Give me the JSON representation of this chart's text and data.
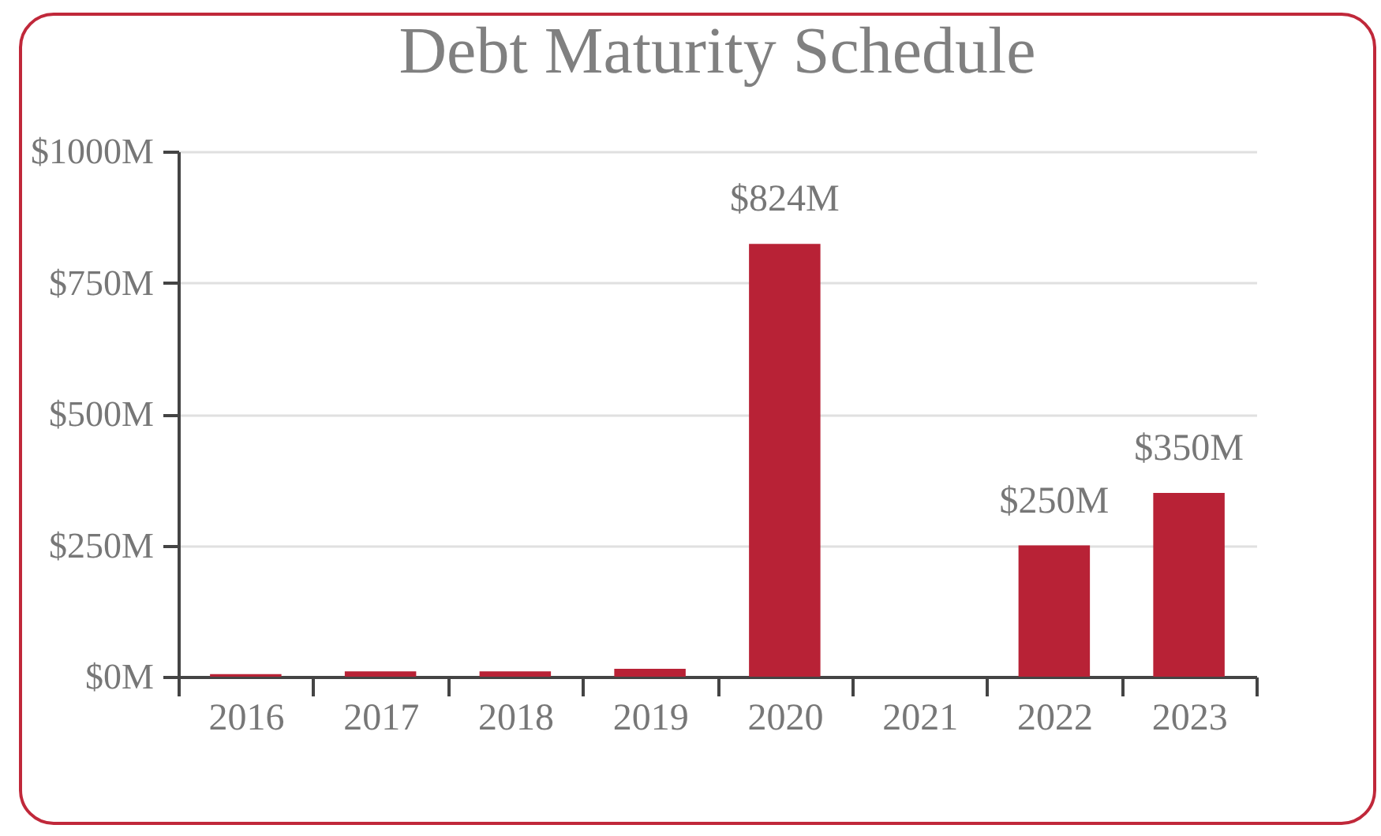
{
  "chart_data": {
    "type": "bar",
    "title": "Debt Maturity Schedule",
    "categories": [
      "2016",
      "2017",
      "2018",
      "2019",
      "2020",
      "2021",
      "2022",
      "2023"
    ],
    "values": [
      5,
      10,
      10,
      15,
      824,
      0,
      250,
      350
    ],
    "value_labels": [
      null,
      null,
      null,
      null,
      "$824M",
      null,
      "$250M",
      "$350M"
    ],
    "color": "#b82236",
    "ylim": [
      0,
      1000
    ],
    "yticks": [
      {
        "value": 0,
        "label": "$0M"
      },
      {
        "value": 250,
        "label": "$250M"
      },
      {
        "value": 500,
        "label": "$500M"
      },
      {
        "value": 750,
        "label": "$750M"
      },
      {
        "value": 1000,
        "label": "$1000M"
      }
    ],
    "grid": "y"
  }
}
